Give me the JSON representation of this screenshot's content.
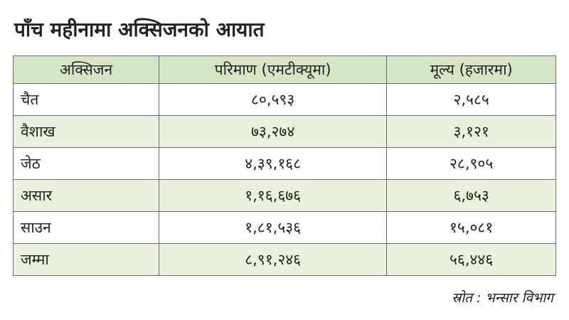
{
  "header": {
    "title": "पाँच महीनामा अक्सिजनको आयात"
  },
  "table": {
    "columns": [
      "अक्सिजन",
      "परिमाण (एमटीक्यूमा)",
      "मूल्य (हजारमा)"
    ],
    "rows": [
      [
        "चैत",
        "८०,५९३",
        "२,५८५"
      ],
      [
        "वैशाख",
        "७३,२७४",
        "३,१२१"
      ],
      [
        "जेठ",
        "४,३९,१६८",
        "२८,९०५"
      ],
      [
        "असार",
        "१,१६,६७६",
        "६,७५३"
      ],
      [
        "साउन",
        "१,८१,५३६",
        "१५,०८१"
      ],
      [
        "जम्मा",
        "८,९१,२४६",
        "५६,४४६"
      ]
    ]
  },
  "footer": {
    "source": "स्रोत : भन्सार विभाग"
  }
}
